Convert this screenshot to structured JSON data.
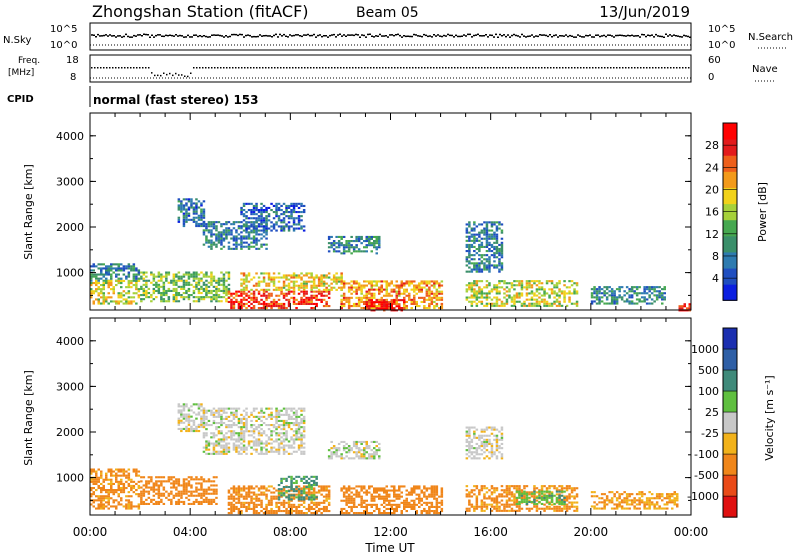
{
  "header": {
    "title": "Zhongshan Station (fitACF)",
    "beam": "Beam 05",
    "date": "13/Jun/2019"
  },
  "aux_panels": {
    "nsky_label": "N.Sky",
    "nsky_ticks": [
      "10^5",
      "10^0"
    ],
    "nsearch_label": "N.Search",
    "nsearch_ticks": [
      "10^5",
      "10^0"
    ],
    "freq_label_line1": "Freq.",
    "freq_label_line2": "[MHz]",
    "freq_ticks": [
      "18",
      "8"
    ],
    "nave_label": "Nave",
    "nave_ticks": [
      "60",
      "0"
    ],
    "cpid_label": "CPID",
    "cpid_text": "normal (fast stereo) 153"
  },
  "colors": {
    "power_scale": [
      "#0b1fe0",
      "#1f4ec0",
      "#2e7bb0",
      "#3a8f6a",
      "#46a850",
      "#a6d13a",
      "#f1d21a",
      "#f39a1a",
      "#ef5f1a",
      "#e31a1c",
      "#ff0000"
    ],
    "velocity_scale": [
      "#1b2fb0",
      "#2e5fa6",
      "#3f8a7a",
      "#5fbf3f",
      "#c8c8c8",
      "#f2b21a",
      "#f0861a",
      "#ea4a17",
      "#e01010"
    ]
  },
  "chart_data": [
    {
      "type": "heatmap",
      "name": "power-panel",
      "x_axis": {
        "label": "",
        "ticks": [
          "00:00",
          "04:00",
          "08:00",
          "12:00",
          "16:00",
          "20:00",
          "00:00"
        ],
        "range_hours": [
          0,
          24
        ]
      },
      "y_axis": {
        "label": "Slant Range [km]",
        "ticks": [
          "1000",
          "2000",
          "3000",
          "4000"
        ],
        "range_km": [
          180,
          4500
        ]
      },
      "colorbar": {
        "label": "Power [dB]",
        "ticks": [
          "4",
          "8",
          "12",
          "16",
          "20",
          "24",
          "28"
        ],
        "range": [
          0,
          32
        ]
      },
      "regions": [
        {
          "t": [
            0.0,
            2.0
          ],
          "r": [
            800,
            1200
          ],
          "v": 9
        },
        {
          "t": [
            0.0,
            2.0
          ],
          "r": [
            300,
            800
          ],
          "v": 18
        },
        {
          "t": [
            2.0,
            5.5
          ],
          "r": [
            350,
            1000
          ],
          "v": 14
        },
        {
          "t": [
            3.5,
            4.5
          ],
          "r": [
            2000,
            2600
          ],
          "v": 7
        },
        {
          "t": [
            4.5,
            7.0
          ],
          "r": [
            1500,
            2100
          ],
          "v": 8
        },
        {
          "t": [
            6.0,
            8.5
          ],
          "r": [
            1900,
            2500
          ],
          "v": 6
        },
        {
          "t": [
            5.5,
            9.5
          ],
          "r": [
            200,
            600
          ],
          "v": 27
        },
        {
          "t": [
            6.0,
            10.0
          ],
          "r": [
            600,
            1000
          ],
          "v": 19
        },
        {
          "t": [
            9.5,
            11.5
          ],
          "r": [
            1400,
            1800
          ],
          "v": 9
        },
        {
          "t": [
            10.0,
            14.0
          ],
          "r": [
            200,
            800
          ],
          "v": 22
        },
        {
          "t": [
            11.0,
            12.5
          ],
          "r": [
            150,
            400
          ],
          "v": 29
        },
        {
          "t": [
            15.0,
            16.5
          ],
          "r": [
            1000,
            2100
          ],
          "v": 8
        },
        {
          "t": [
            15.0,
            19.5
          ],
          "r": [
            250,
            800
          ],
          "v": 17
        },
        {
          "t": [
            20.0,
            23.0
          ],
          "r": [
            300,
            700
          ],
          "v": 9
        },
        {
          "t": [
            23.5,
            24.0
          ],
          "r": [
            150,
            300
          ],
          "v": 28
        }
      ]
    },
    {
      "type": "heatmap",
      "name": "velocity-panel",
      "x_axis": {
        "label": "Time UT",
        "ticks": [
          "00:00",
          "04:00",
          "08:00",
          "12:00",
          "16:00",
          "20:00",
          "00:00"
        ],
        "range_hours": [
          0,
          24
        ]
      },
      "y_axis": {
        "label": "Slant Range [km]",
        "ticks": [
          "1000",
          "2000",
          "3000",
          "4000"
        ],
        "range_km": [
          180,
          4500
        ]
      },
      "colorbar": {
        "label": "Velocity [m s⁻¹]",
        "ticks": [
          "1000",
          "500",
          "100",
          "25",
          "-25",
          "-100",
          "-500",
          "-1000"
        ]
      },
      "regions": [
        {
          "t": [
            0.0,
            2.0
          ],
          "r": [
            300,
            1200
          ],
          "v": -150
        },
        {
          "t": [
            2.0,
            5.0
          ],
          "r": [
            400,
            1000
          ],
          "v": -300
        },
        {
          "t": [
            3.5,
            4.5
          ],
          "r": [
            2000,
            2600
          ],
          "v": 0
        },
        {
          "t": [
            4.5,
            8.5
          ],
          "r": [
            1500,
            2500
          ],
          "v": 0
        },
        {
          "t": [
            5.5,
            9.5
          ],
          "r": [
            200,
            800
          ],
          "v": -200
        },
        {
          "t": [
            7.5,
            9.0
          ],
          "r": [
            500,
            1000
          ],
          "v": 150
        },
        {
          "t": [
            9.5,
            11.5
          ],
          "r": [
            1400,
            1800
          ],
          "v": 0
        },
        {
          "t": [
            10.0,
            14.0
          ],
          "r": [
            200,
            800
          ],
          "v": -250
        },
        {
          "t": [
            15.0,
            16.5
          ],
          "r": [
            1400,
            2100
          ],
          "v": 0
        },
        {
          "t": [
            15.0,
            19.5
          ],
          "r": [
            250,
            800
          ],
          "v": -150
        },
        {
          "t": [
            17.0,
            19.0
          ],
          "r": [
            400,
            700
          ],
          "v": 80
        },
        {
          "t": [
            20.0,
            23.5
          ],
          "r": [
            300,
            700
          ],
          "v": -100
        }
      ]
    }
  ]
}
